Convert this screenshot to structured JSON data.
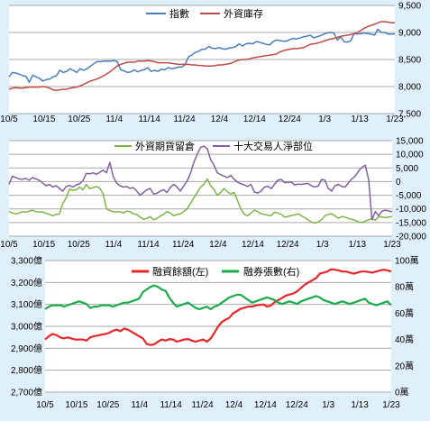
{
  "chart_data": [
    {
      "type": "line",
      "title": "",
      "x_labels": [
        "10/5",
        "10/15",
        "10/25",
        "11/4",
        "11/14",
        "11/24",
        "12/4",
        "12/14",
        "12/24",
        "1/3",
        "1/13",
        "1/23"
      ],
      "y_right_ticks": [
        "9,500",
        "9,000",
        "8,500",
        "8,000",
        "7,500"
      ],
      "y_right_lim": [
        7500,
        9500
      ],
      "grid": true,
      "legend_position": "top",
      "series": [
        {
          "name": "指數",
          "color": "#4a7ebb",
          "axis": "right",
          "values": [
            8180,
            8260,
            8250,
            8230,
            8200,
            8190,
            8080,
            8210,
            8180,
            8150,
            8100,
            8130,
            8140,
            8180,
            8200,
            8300,
            8260,
            8280,
            8330,
            8300,
            8260,
            8330,
            8300,
            8330,
            8370,
            8420,
            8460,
            8460,
            8470,
            8470,
            8470,
            8480,
            8460,
            8310,
            8290,
            8260,
            8270,
            8310,
            8270,
            8300,
            8310,
            8350,
            8280,
            8300,
            8280,
            8320,
            8310,
            8350,
            8330,
            8340,
            8360,
            8360,
            8400,
            8550,
            8580,
            8630,
            8650,
            8690,
            8690,
            8740,
            8710,
            8700,
            8720,
            8700,
            8690,
            8710,
            8720,
            8740,
            8790,
            8750,
            8790,
            8800,
            8790,
            8830,
            8820,
            8800,
            8780,
            8770,
            8830,
            8860,
            8850,
            8840,
            8840,
            8870,
            8890,
            8880,
            8900,
            8920,
            8930,
            8950,
            8900,
            8920,
            8940,
            8970,
            8990,
            9000,
            8990,
            8860,
            8920,
            8830,
            8820,
            8850,
            8980,
            8970,
            8980,
            8990,
            8980,
            8970,
            8950,
            9060,
            9000,
            9000,
            8970,
            8970,
            8970
          ]
        },
        {
          "name": "外資庫存",
          "color": "#be4b48",
          "axis": "right",
          "values": [
            7950,
            7970,
            7980,
            7970,
            7970,
            7980,
            7990,
            7990,
            7990,
            7990,
            8000,
            7990,
            7970,
            7940,
            7930,
            7940,
            7950,
            7950,
            7970,
            7980,
            7990,
            8010,
            8040,
            8070,
            8100,
            8120,
            8140,
            8170,
            8200,
            8240,
            8280,
            8330,
            8380,
            8410,
            8430,
            8450,
            8450,
            8450,
            8470,
            8470,
            8470,
            8480,
            8470,
            8460,
            8440,
            8440,
            8440,
            8440,
            8430,
            8420,
            8410,
            8410,
            8410,
            8410,
            8400,
            8400,
            8390,
            8390,
            8380,
            8380,
            8380,
            8390,
            8400,
            8400,
            8410,
            8420,
            8440,
            8470,
            8490,
            8500,
            8500,
            8510,
            8530,
            8540,
            8550,
            8560,
            8570,
            8580,
            8590,
            8600,
            8640,
            8660,
            8680,
            8690,
            8700,
            8700,
            8710,
            8720,
            8750,
            8780,
            8790,
            8800,
            8820,
            8840,
            8860,
            8880,
            8890,
            8910,
            8930,
            8940,
            8950,
            8960,
            8980,
            9000,
            9040,
            9080,
            9110,
            9130,
            9150,
            9180,
            9200,
            9200,
            9190,
            9180,
            9180
          ]
        }
      ]
    },
    {
      "type": "line",
      "title": "",
      "x_labels": [
        "10/5",
        "10/15",
        "10/25",
        "11/4",
        "11/14",
        "11/24",
        "12/4",
        "12/14",
        "12/24",
        "1/3",
        "1/13",
        "1/23"
      ],
      "y_right_ticks": [
        "15,000",
        "10,000",
        "5,000",
        "0",
        "-5,000",
        "-10,000",
        "-15,000",
        "-20,000"
      ],
      "y_right_lim": [
        -20000,
        15000
      ],
      "grid": true,
      "legend_position": "top",
      "series": [
        {
          "name": "外資期貨留倉",
          "color": "#7db646",
          "axis": "right",
          "values": [
            -11000,
            -11500,
            -11800,
            -11500,
            -11000,
            -11200,
            -10800,
            -10500,
            -11000,
            -11200,
            -11100,
            -11600,
            -12000,
            -12500,
            -12000,
            -11800,
            -8000,
            -6000,
            -2800,
            -3200,
            -3000,
            -2000,
            -3000,
            -1000,
            -2600,
            -2200,
            -1800,
            -2400,
            -4500,
            -10000,
            -10600,
            -11000,
            -11200,
            -11000,
            -11500,
            -10800,
            -11000,
            -11800,
            -12000,
            -13000,
            -13800,
            -13500,
            -12800,
            -14000,
            -13500,
            -12600,
            -12000,
            -11000,
            -11500,
            -12500,
            -12000,
            -11800,
            -11000,
            -10000,
            -8000,
            -6000,
            -4000,
            -2000,
            -1000,
            1000,
            -1500,
            -3000,
            -5000,
            -4000,
            -2500,
            -3800,
            -4500,
            -4000,
            -7000,
            -10000,
            -12000,
            -12500,
            -11500,
            -10500,
            -11000,
            -11800,
            -12000,
            -12300,
            -12500,
            -11200,
            -11500,
            -12000,
            -13000,
            -12800,
            -12400,
            -12200,
            -11800,
            -12500,
            -13200,
            -14000,
            -14800,
            -15200,
            -14800,
            -14000,
            -12500,
            -12000,
            -11800,
            -12500,
            -13500,
            -12800,
            -13000,
            -13500,
            -13800,
            -14200,
            -14800,
            -15000,
            -14500,
            -14000,
            -13500,
            -14200,
            -12800,
            -13000,
            -13200,
            -13000,
            -12800
          ]
        },
        {
          "name": "十大交易人淨部位",
          "color": "#8062a0",
          "axis": "right",
          "values": [
            -1000,
            2000,
            1500,
            1000,
            800,
            1200,
            500,
            1500,
            1000,
            500,
            -500,
            -1500,
            -1000,
            -2000,
            -1500,
            -2500,
            -3500,
            -1800,
            -1400,
            -2000,
            -1200,
            -800,
            300,
            3000,
            2800,
            3200,
            2700,
            3400,
            4200,
            3200,
            7000,
            1800,
            -500,
            -1500,
            -2000,
            -1800,
            -2500,
            -2200,
            -3500,
            -5000,
            -4000,
            -3000,
            -2500,
            -4500,
            -4300,
            -3500,
            -3000,
            -4000,
            -2200,
            -1000,
            -2000,
            -3500,
            -1500,
            200,
            3000,
            7000,
            10000,
            12500,
            13000,
            12000,
            8000,
            6000,
            3200,
            2500,
            2000,
            1500,
            2300,
            800,
            -200,
            -800,
            -1200,
            -1800,
            -1000,
            -3800,
            -4200,
            -3500,
            -2000,
            -1700,
            -2600,
            -1000,
            500,
            800,
            -400,
            -300,
            -200,
            -1200,
            -900,
            -1000,
            -800,
            -700,
            -1500,
            -2000,
            -1600,
            800,
            500,
            -2500,
            -3500,
            -1500,
            -1000,
            -1800,
            -2000,
            -500,
            1000,
            2000,
            3800,
            5200,
            6000,
            800,
            -14000,
            -11000,
            -12500,
            -10800,
            -10500,
            -10800,
            -11000
          ]
        }
      ]
    },
    {
      "type": "line",
      "title": "",
      "x_labels": [
        "10/5",
        "10/15",
        "10/25",
        "11/4",
        "11/14",
        "11/24",
        "12/4",
        "12/14",
        "12/24",
        "1/3",
        "1/13",
        "1/23"
      ],
      "y_left_ticks": [
        "3,300億",
        "3,200億",
        "3,100億",
        "3,000億",
        "2,900億",
        "2,800億",
        "2,700億"
      ],
      "y_left_lim": [
        2700,
        3300
      ],
      "y_right_ticks": [
        "100萬",
        "80萬",
        "60萬",
        "40萬",
        "20萬",
        "0萬"
      ],
      "y_right_lim": [
        0,
        100
      ],
      "grid": true,
      "legend_position": "top",
      "series": [
        {
          "name": "融資餘額(左)",
          "color": "#e8262a",
          "axis": "left",
          "values": [
            2940,
            2955,
            2965,
            2960,
            2950,
            2945,
            2950,
            2945,
            2940,
            2940,
            2940,
            2935,
            2950,
            2955,
            2958,
            2962,
            2965,
            2970,
            2980,
            2985,
            2978,
            2990,
            2985,
            2975,
            2965,
            2955,
            2945,
            2920,
            2915,
            2918,
            2930,
            2940,
            2935,
            2942,
            2940,
            2930,
            2935,
            2940,
            2942,
            2935,
            2930,
            2935,
            2940,
            2930,
            2945,
            2970,
            3000,
            3020,
            3030,
            3040,
            3060,
            3070,
            3080,
            3085,
            3090,
            3090,
            3095,
            3098,
            3100,
            3090,
            3095,
            3110,
            3120,
            3130,
            3140,
            3145,
            3150,
            3160,
            3175,
            3190,
            3200,
            3210,
            3220,
            3240,
            3245,
            3250,
            3260,
            3258,
            3255,
            3250,
            3250,
            3245,
            3240,
            3245,
            3250,
            3250,
            3248,
            3245,
            3250,
            3255,
            3258,
            3255,
            3250
          ]
        },
        {
          "name": "融券張數(右)",
          "color": "#1aac4a",
          "axis": "right",
          "values": [
            63,
            65,
            66,
            66,
            66,
            65,
            66,
            67,
            68,
            69,
            68,
            67,
            64,
            65,
            65,
            66,
            66,
            66,
            65,
            66,
            67,
            68,
            68,
            69,
            70,
            71,
            76,
            78,
            80,
            81,
            80,
            78,
            77,
            72,
            68,
            65,
            66,
            67,
            68,
            66,
            64,
            63,
            64,
            65,
            63,
            65,
            66,
            68,
            70,
            72,
            73,
            74,
            74,
            72,
            70,
            68,
            69,
            70,
            71,
            72,
            71,
            70,
            68,
            67,
            68,
            69,
            68,
            67,
            69,
            70,
            71,
            72,
            73,
            72,
            70,
            69,
            68,
            67,
            68,
            69,
            68,
            67,
            68,
            69,
            70,
            71,
            68,
            67,
            66,
            67,
            68,
            69,
            66
          ]
        }
      ]
    }
  ]
}
